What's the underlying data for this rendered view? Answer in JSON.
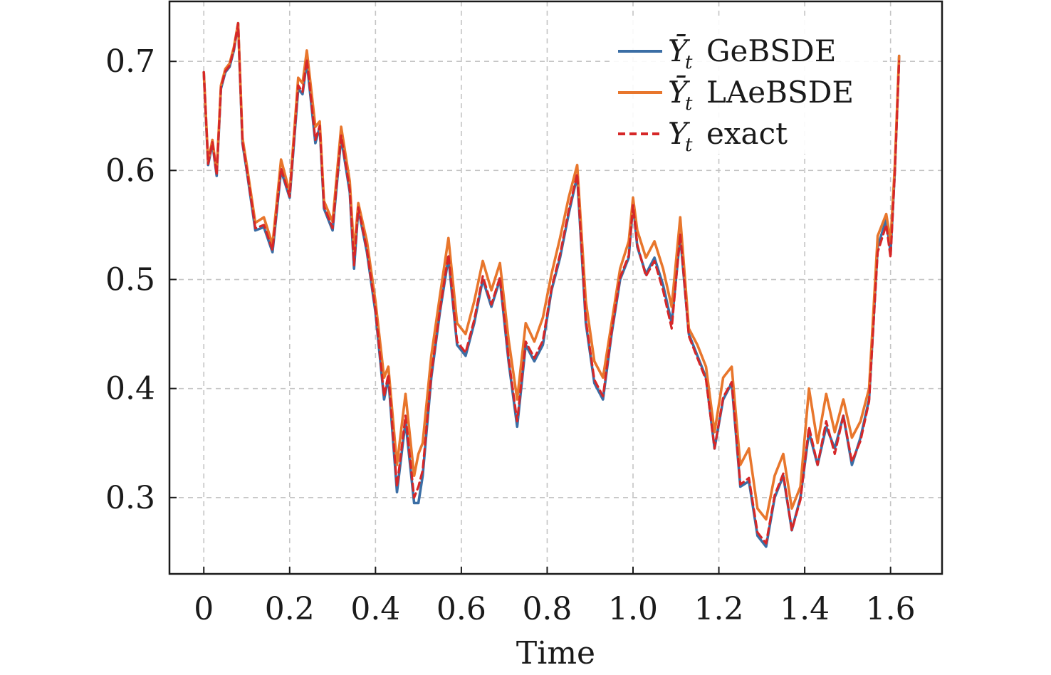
{
  "chart_data": {
    "type": "line",
    "title": "",
    "xlabel": "Time",
    "ylabel": "",
    "xlim": [
      -0.08,
      1.72
    ],
    "ylim": [
      0.23,
      0.755
    ],
    "xticks": [
      0,
      0.2,
      0.4,
      0.6,
      0.8,
      1.0,
      1.2,
      1.4,
      1.6
    ],
    "xtick_labels": [
      "0",
      "0.2",
      "0.4",
      "0.6",
      "0.8",
      "1.0",
      "1.2",
      "1.4",
      "1.6"
    ],
    "yticks": [
      0.3,
      0.4,
      0.5,
      0.6,
      0.7
    ],
    "ytick_labels": [
      "0.3",
      "0.4",
      "0.5",
      "0.6",
      "0.7"
    ],
    "grid": true,
    "legend_position": "top-right",
    "x": [
      0.0,
      0.01,
      0.02,
      0.03,
      0.04,
      0.05,
      0.06,
      0.07,
      0.08,
      0.09,
      0.1,
      0.12,
      0.14,
      0.16,
      0.18,
      0.2,
      0.22,
      0.23,
      0.24,
      0.26,
      0.27,
      0.28,
      0.3,
      0.32,
      0.34,
      0.35,
      0.36,
      0.38,
      0.4,
      0.42,
      0.43,
      0.45,
      0.47,
      0.49,
      0.5,
      0.51,
      0.53,
      0.55,
      0.57,
      0.59,
      0.61,
      0.63,
      0.65,
      0.67,
      0.69,
      0.71,
      0.73,
      0.75,
      0.77,
      0.79,
      0.81,
      0.83,
      0.85,
      0.87,
      0.89,
      0.91,
      0.93,
      0.95,
      0.97,
      0.99,
      1.0,
      1.01,
      1.03,
      1.05,
      1.07,
      1.09,
      1.11,
      1.13,
      1.15,
      1.17,
      1.19,
      1.21,
      1.23,
      1.25,
      1.27,
      1.29,
      1.31,
      1.33,
      1.35,
      1.37,
      1.39,
      1.41,
      1.43,
      1.45,
      1.47,
      1.49,
      1.51,
      1.53,
      1.55,
      1.57,
      1.59,
      1.6,
      1.61,
      1.62
    ],
    "series": [
      {
        "name": "GeBSDE",
        "color": "#3b6ea5",
        "style": "solid",
        "values": [
          0.69,
          0.605,
          0.625,
          0.595,
          0.675,
          0.69,
          0.695,
          0.71,
          0.735,
          0.625,
          0.6,
          0.545,
          0.548,
          0.525,
          0.6,
          0.575,
          0.675,
          0.67,
          0.7,
          0.625,
          0.64,
          0.565,
          0.545,
          0.63,
          0.58,
          0.51,
          0.565,
          0.525,
          0.47,
          0.39,
          0.41,
          0.305,
          0.37,
          0.295,
          0.295,
          0.32,
          0.41,
          0.47,
          0.52,
          0.44,
          0.43,
          0.46,
          0.5,
          0.475,
          0.5,
          0.425,
          0.365,
          0.44,
          0.425,
          0.44,
          0.49,
          0.52,
          0.56,
          0.595,
          0.46,
          0.405,
          0.39,
          0.45,
          0.5,
          0.52,
          0.57,
          0.53,
          0.505,
          0.52,
          0.495,
          0.46,
          0.54,
          0.45,
          0.43,
          0.41,
          0.345,
          0.39,
          0.405,
          0.31,
          0.315,
          0.265,
          0.255,
          0.3,
          0.32,
          0.27,
          0.3,
          0.36,
          0.33,
          0.365,
          0.345,
          0.375,
          0.33,
          0.355,
          0.39,
          0.53,
          0.555,
          0.525,
          0.6,
          0.705
        ]
      },
      {
        "name": "LAeBSDE",
        "color": "#e8762c",
        "style": "solid",
        "values": [
          0.69,
          0.608,
          0.628,
          0.598,
          0.678,
          0.693,
          0.698,
          0.713,
          0.735,
          0.63,
          0.605,
          0.552,
          0.557,
          0.532,
          0.61,
          0.58,
          0.685,
          0.68,
          0.71,
          0.64,
          0.645,
          0.572,
          0.553,
          0.64,
          0.59,
          0.525,
          0.57,
          0.535,
          0.48,
          0.41,
          0.42,
          0.33,
          0.395,
          0.32,
          0.34,
          0.35,
          0.43,
          0.485,
          0.538,
          0.46,
          0.45,
          0.48,
          0.517,
          0.49,
          0.515,
          0.445,
          0.39,
          0.46,
          0.443,
          0.465,
          0.505,
          0.538,
          0.575,
          0.605,
          0.48,
          0.425,
          0.41,
          0.46,
          0.51,
          0.535,
          0.575,
          0.545,
          0.52,
          0.535,
          0.51,
          0.475,
          0.557,
          0.455,
          0.44,
          0.42,
          0.36,
          0.41,
          0.42,
          0.33,
          0.345,
          0.29,
          0.28,
          0.32,
          0.34,
          0.29,
          0.31,
          0.4,
          0.35,
          0.395,
          0.36,
          0.39,
          0.355,
          0.37,
          0.4,
          0.54,
          0.56,
          0.535,
          0.605,
          0.705
        ]
      },
      {
        "name": "exact",
        "color": "#d62728",
        "style": "dashed",
        "values": [
          0.69,
          0.606,
          0.626,
          0.596,
          0.676,
          0.691,
          0.696,
          0.711,
          0.735,
          0.626,
          0.601,
          0.547,
          0.55,
          0.527,
          0.602,
          0.576,
          0.678,
          0.672,
          0.702,
          0.628,
          0.641,
          0.567,
          0.547,
          0.632,
          0.582,
          0.513,
          0.566,
          0.527,
          0.472,
          0.393,
          0.413,
          0.31,
          0.375,
          0.3,
          0.31,
          0.325,
          0.413,
          0.472,
          0.523,
          0.443,
          0.433,
          0.463,
          0.503,
          0.477,
          0.502,
          0.428,
          0.37,
          0.443,
          0.428,
          0.444,
          0.492,
          0.523,
          0.563,
          0.597,
          0.463,
          0.408,
          0.393,
          0.452,
          0.502,
          0.522,
          0.568,
          0.532,
          0.503,
          0.517,
          0.49,
          0.455,
          0.542,
          0.448,
          0.428,
          0.408,
          0.345,
          0.392,
          0.406,
          0.312,
          0.318,
          0.268,
          0.258,
          0.302,
          0.322,
          0.27,
          0.298,
          0.365,
          0.33,
          0.37,
          0.34,
          0.375,
          0.333,
          0.352,
          0.388,
          0.525,
          0.55,
          0.52,
          0.598,
          0.7
        ]
      }
    ],
    "legend": [
      {
        "symbol": "Ȳ",
        "subscript": "t",
        "label": "GeBSDE"
      },
      {
        "symbol": "Ȳ",
        "subscript": "t",
        "label": "LAeBSDE"
      },
      {
        "symbol": "Y",
        "subscript": "t",
        "label": "exact"
      }
    ]
  }
}
